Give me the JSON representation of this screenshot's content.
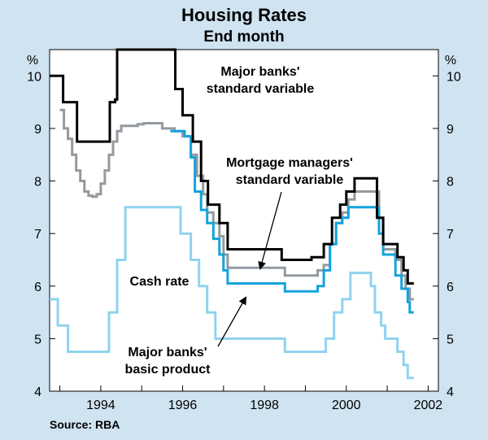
{
  "chart_data": {
    "type": "line",
    "title": "Housing Rates",
    "subtitle": "End month",
    "y_unit_left": "%",
    "y_unit_right": "%",
    "source": "Source: RBA",
    "xlim": [
      1992.75,
      2002.25
    ],
    "ylim": [
      4,
      10.5
    ],
    "x_ticks": [
      {
        "value": 1994,
        "label": "1994"
      },
      {
        "value": 1996,
        "label": "1996"
      },
      {
        "value": 1998,
        "label": "1998"
      },
      {
        "value": 2000,
        "label": "2000"
      },
      {
        "value": 2002,
        "label": "2002"
      }
    ],
    "y_ticks": [
      {
        "value": 4,
        "label": "4"
      },
      {
        "value": 5,
        "label": "5"
      },
      {
        "value": 6,
        "label": "6"
      },
      {
        "value": 7,
        "label": "7"
      },
      {
        "value": 8,
        "label": "8"
      },
      {
        "value": 9,
        "label": "9"
      },
      {
        "value": 10,
        "label": "10"
      }
    ],
    "grid": false,
    "series": [
      {
        "name": "Major banks' standard variable",
        "color": "#000000",
        "step": true,
        "points": [
          [
            1992.75,
            10.0
          ],
          [
            1993.05,
            10.0
          ],
          [
            1993.08,
            9.5
          ],
          [
            1993.4,
            9.5
          ],
          [
            1993.42,
            8.75
          ],
          [
            1994.2,
            8.75
          ],
          [
            1994.22,
            9.5
          ],
          [
            1994.35,
            9.55
          ],
          [
            1994.4,
            10.5
          ],
          [
            1995.8,
            10.5
          ],
          [
            1995.82,
            9.75
          ],
          [
            1995.95,
            9.75
          ],
          [
            1996.0,
            9.25
          ],
          [
            1996.2,
            9.25
          ],
          [
            1996.25,
            8.75
          ],
          [
            1996.4,
            8.75
          ],
          [
            1996.45,
            8.0
          ],
          [
            1996.6,
            8.0
          ],
          [
            1996.62,
            7.55
          ],
          [
            1996.85,
            7.55
          ],
          [
            1996.9,
            7.2
          ],
          [
            1997.05,
            7.2
          ],
          [
            1997.1,
            6.7
          ],
          [
            1998.4,
            6.7
          ],
          [
            1998.42,
            6.5
          ],
          [
            1999.1,
            6.5
          ],
          [
            1999.15,
            6.55
          ],
          [
            1999.4,
            6.55
          ],
          [
            1999.45,
            6.8
          ],
          [
            1999.6,
            6.8
          ],
          [
            1999.65,
            7.3
          ],
          [
            1999.8,
            7.3
          ],
          [
            1999.85,
            7.55
          ],
          [
            1999.95,
            7.55
          ],
          [
            2000.0,
            7.8
          ],
          [
            2000.15,
            7.8
          ],
          [
            2000.2,
            8.05
          ],
          [
            2000.7,
            8.05
          ],
          [
            2000.75,
            7.3
          ],
          [
            2000.85,
            7.3
          ],
          [
            2000.9,
            6.8
          ],
          [
            2001.2,
            6.8
          ],
          [
            2001.25,
            6.55
          ],
          [
            2001.35,
            6.55
          ],
          [
            2001.4,
            6.3
          ],
          [
            2001.45,
            6.3
          ],
          [
            2001.5,
            6.05
          ],
          [
            2001.65,
            6.05
          ]
        ]
      },
      {
        "name": "Mortgage managers' standard variable",
        "color": "#939aa0",
        "step": true,
        "points": [
          [
            1993.0,
            9.35
          ],
          [
            1993.1,
            9.0
          ],
          [
            1993.2,
            8.8
          ],
          [
            1993.3,
            8.5
          ],
          [
            1993.4,
            8.2
          ],
          [
            1993.5,
            8.0
          ],
          [
            1993.6,
            7.8
          ],
          [
            1993.7,
            7.72
          ],
          [
            1993.8,
            7.7
          ],
          [
            1993.9,
            7.75
          ],
          [
            1994.0,
            7.95
          ],
          [
            1994.1,
            8.2
          ],
          [
            1994.2,
            8.5
          ],
          [
            1994.3,
            8.75
          ],
          [
            1994.4,
            8.95
          ],
          [
            1994.5,
            9.05
          ],
          [
            1994.7,
            9.05
          ],
          [
            1994.9,
            9.08
          ],
          [
            1995.05,
            9.1
          ],
          [
            1995.4,
            9.1
          ],
          [
            1995.5,
            9.0
          ],
          [
            1995.8,
            8.95
          ],
          [
            1996.0,
            8.85
          ],
          [
            1996.2,
            8.5
          ],
          [
            1996.35,
            8.1
          ],
          [
            1996.5,
            7.75
          ],
          [
            1996.6,
            7.4
          ],
          [
            1996.75,
            7.2
          ],
          [
            1996.9,
            6.95
          ],
          [
            1997.0,
            6.6
          ],
          [
            1997.1,
            6.35
          ],
          [
            1998.45,
            6.35
          ],
          [
            1998.5,
            6.2
          ],
          [
            1999.2,
            6.2
          ],
          [
            1999.3,
            6.3
          ],
          [
            1999.45,
            6.4
          ],
          [
            1999.6,
            6.8
          ],
          [
            1999.75,
            7.2
          ],
          [
            1999.9,
            7.4
          ],
          [
            2000.05,
            7.65
          ],
          [
            2000.2,
            7.8
          ],
          [
            2000.7,
            7.8
          ],
          [
            2000.8,
            7.3
          ],
          [
            2000.9,
            6.7
          ],
          [
            2001.2,
            6.5
          ],
          [
            2001.35,
            6.2
          ],
          [
            2001.45,
            5.95
          ],
          [
            2001.55,
            5.75
          ],
          [
            2001.65,
            5.75
          ]
        ]
      },
      {
        "name": "Major banks' basic product",
        "color": "#14a3dc",
        "step": true,
        "points": [
          [
            1995.7,
            8.95
          ],
          [
            1995.9,
            8.95
          ],
          [
            1996.05,
            8.85
          ],
          [
            1996.2,
            8.45
          ],
          [
            1996.3,
            7.8
          ],
          [
            1996.45,
            7.45
          ],
          [
            1996.6,
            7.2
          ],
          [
            1996.75,
            6.9
          ],
          [
            1996.9,
            6.6
          ],
          [
            1997.0,
            6.3
          ],
          [
            1997.1,
            6.05
          ],
          [
            1998.45,
            6.05
          ],
          [
            1998.5,
            5.9
          ],
          [
            1999.2,
            5.9
          ],
          [
            1999.3,
            6.0
          ],
          [
            1999.45,
            6.3
          ],
          [
            1999.6,
            6.8
          ],
          [
            1999.75,
            7.2
          ],
          [
            1999.9,
            7.3
          ],
          [
            2000.05,
            7.5
          ],
          [
            2000.2,
            7.5
          ],
          [
            2000.7,
            7.5
          ],
          [
            2000.8,
            7.0
          ],
          [
            2000.9,
            6.6
          ],
          [
            2001.2,
            6.2
          ],
          [
            2001.35,
            5.95
          ],
          [
            2001.5,
            5.7
          ],
          [
            2001.55,
            5.5
          ],
          [
            2001.65,
            5.5
          ]
        ]
      },
      {
        "name": "Cash rate",
        "color": "#8fd3ef",
        "step": true,
        "points": [
          [
            1992.75,
            5.75
          ],
          [
            1992.9,
            5.75
          ],
          [
            1992.95,
            5.25
          ],
          [
            1993.1,
            5.25
          ],
          [
            1993.2,
            4.75
          ],
          [
            1994.15,
            4.75
          ],
          [
            1994.2,
            5.5
          ],
          [
            1994.35,
            5.5
          ],
          [
            1994.4,
            6.5
          ],
          [
            1994.55,
            6.5
          ],
          [
            1994.6,
            7.5
          ],
          [
            1995.9,
            7.5
          ],
          [
            1995.95,
            7.0
          ],
          [
            1996.1,
            7.0
          ],
          [
            1996.2,
            6.5
          ],
          [
            1996.35,
            6.5
          ],
          [
            1996.4,
            6.0
          ],
          [
            1996.55,
            6.0
          ],
          [
            1996.6,
            5.5
          ],
          [
            1996.75,
            5.5
          ],
          [
            1996.8,
            5.0
          ],
          [
            1998.45,
            5.0
          ],
          [
            1998.5,
            4.75
          ],
          [
            1999.45,
            4.75
          ],
          [
            1999.5,
            5.0
          ],
          [
            1999.65,
            5.0
          ],
          [
            1999.7,
            5.5
          ],
          [
            1999.85,
            5.5
          ],
          [
            1999.9,
            5.75
          ],
          [
            2000.05,
            5.75
          ],
          [
            2000.1,
            6.25
          ],
          [
            2000.55,
            6.25
          ],
          [
            2000.6,
            6.0
          ],
          [
            2000.7,
            5.5
          ],
          [
            2000.85,
            5.25
          ],
          [
            2000.95,
            5.0
          ],
          [
            2001.2,
            5.0
          ],
          [
            2001.25,
            4.75
          ],
          [
            2001.35,
            4.75
          ],
          [
            2001.4,
            4.5
          ],
          [
            2001.5,
            4.25
          ],
          [
            2001.65,
            4.25
          ]
        ]
      }
    ],
    "annotations": [
      {
        "series": "Major banks' standard variable",
        "lines": [
          "Major banks'",
          "standard variable"
        ]
      },
      {
        "series": "Mortgage managers' standard variable",
        "lines": [
          "Mortgage managers'",
          "standard variable"
        ],
        "arrow": true
      },
      {
        "series": "Cash rate",
        "lines": [
          "Cash rate"
        ]
      },
      {
        "series": "Major banks' basic product",
        "lines": [
          "Major banks'",
          "basic product"
        ],
        "arrow": true
      }
    ]
  }
}
